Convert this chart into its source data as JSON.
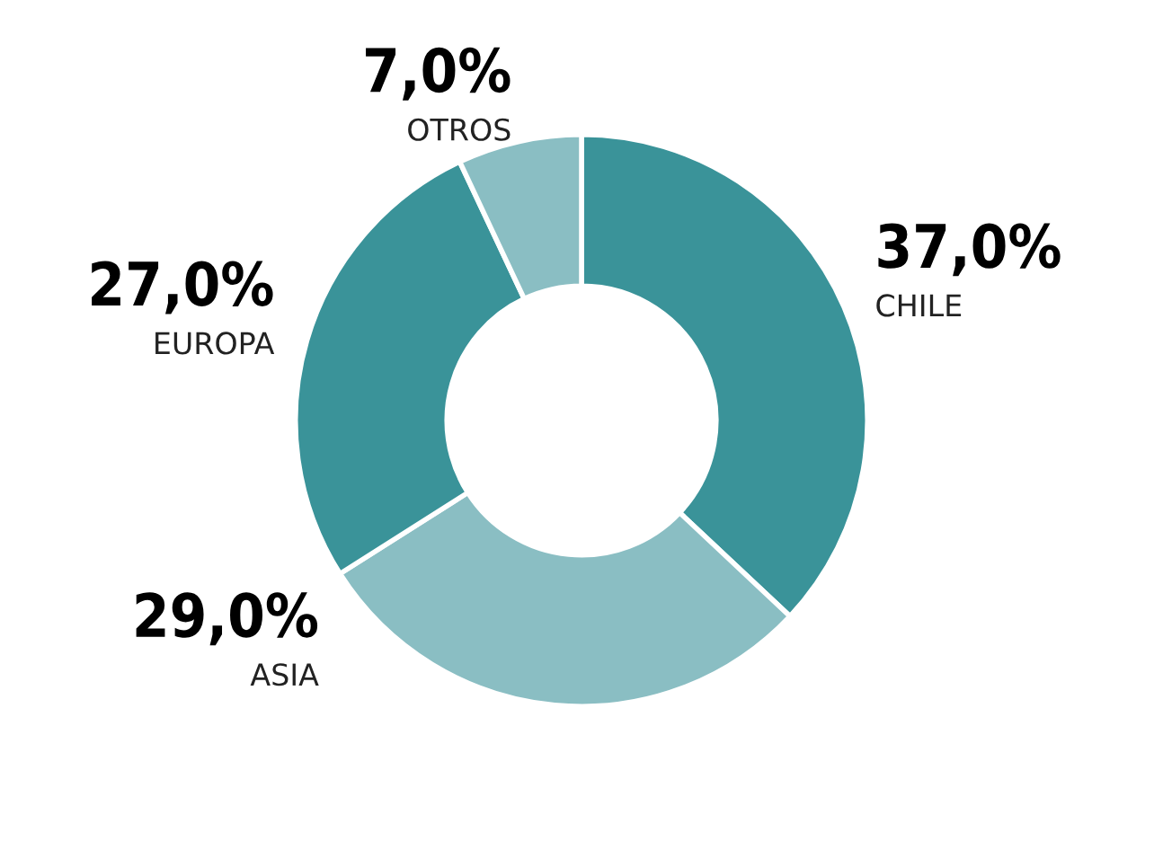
{
  "chart_data": {
    "type": "donut",
    "categories": [
      "CHILE",
      "ASIA",
      "EUROPA",
      "OTROS"
    ],
    "values": [
      37.0,
      29.0,
      27.0,
      7.0
    ],
    "colors": [
      "#3a9399",
      "#8abec3",
      "#3a9399",
      "#8abec3"
    ],
    "value_labels": [
      "37,0%",
      "29,0%",
      "27,0%",
      "7,0%"
    ],
    "legend": false
  }
}
